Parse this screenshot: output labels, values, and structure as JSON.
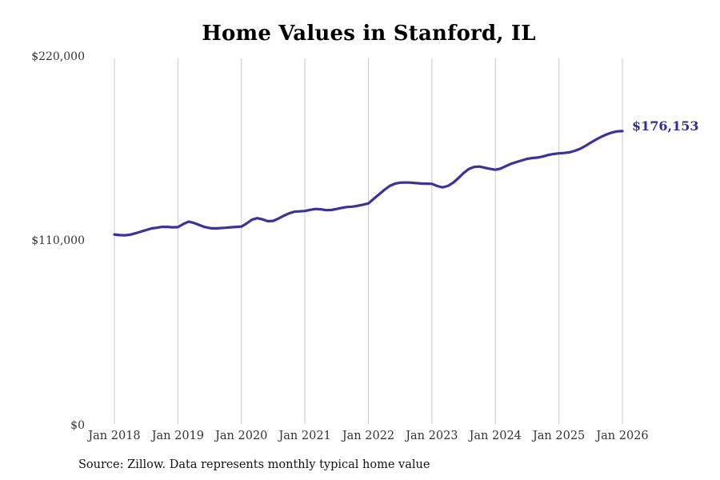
{
  "page": {
    "title": "Home Values in Stanford, IL",
    "source_note": "Source: Zillow. Data represents monthly typical home value"
  },
  "annotation": {
    "final_value_label": "$176,153"
  },
  "colors": {
    "line": "#3a31a2",
    "annotation_text": "#312c98",
    "gridline": "#c9c9c9",
    "tick_text": "#333333",
    "title_text": "#000000"
  },
  "chart_data": {
    "type": "line",
    "title": "Home Values in Stanford, IL",
    "xlabel": "",
    "ylabel": "",
    "legend": "none",
    "grid": "vertical-yearly-only",
    "ylim": [
      0,
      220000
    ],
    "y_ticks": [
      220000,
      110000,
      0
    ],
    "y_tick_labels": [
      "$220,000",
      "$110,000",
      "$0"
    ],
    "x_tick_labels": [
      "Jan 2018",
      "Jan 2019",
      "Jan 2020",
      "Jan 2021",
      "Jan 2022",
      "Jan 2023",
      "Jan 2024",
      "Jan 2025",
      "Jan 2026"
    ],
    "x_start": "Jan 2018",
    "x_end": "Jan 2026",
    "x_frequency": "monthly",
    "final_value": 176153,
    "final_value_label": "$176,153",
    "values_monthly": [
      114500,
      114100,
      114000,
      114400,
      115200,
      116200,
      117100,
      118100,
      118500,
      119000,
      119000,
      118800,
      118900,
      120700,
      122100,
      121400,
      120200,
      119000,
      118300,
      118100,
      118300,
      118500,
      118800,
      119000,
      119200,
      121100,
      123300,
      124200,
      123500,
      122400,
      122600,
      124000,
      125700,
      127100,
      128100,
      128300,
      128500,
      129200,
      129700,
      129500,
      129000,
      129100,
      129700,
      130400,
      130900,
      131100,
      131600,
      132300,
      133000,
      135700,
      138400,
      141000,
      143400,
      144800,
      145400,
      145500,
      145400,
      145100,
      144900,
      144800,
      144700,
      143400,
      142600,
      143400,
      145300,
      148100,
      151200,
      153600,
      154800,
      155000,
      154300,
      153600,
      153100,
      153800,
      155300,
      156700,
      157700,
      158700,
      159600,
      160100,
      160400,
      161000,
      161900,
      162500,
      162900,
      163100,
      163500,
      164400,
      165600,
      167300,
      169200,
      171100,
      172700,
      174200,
      175300,
      176000,
      176153
    ]
  }
}
